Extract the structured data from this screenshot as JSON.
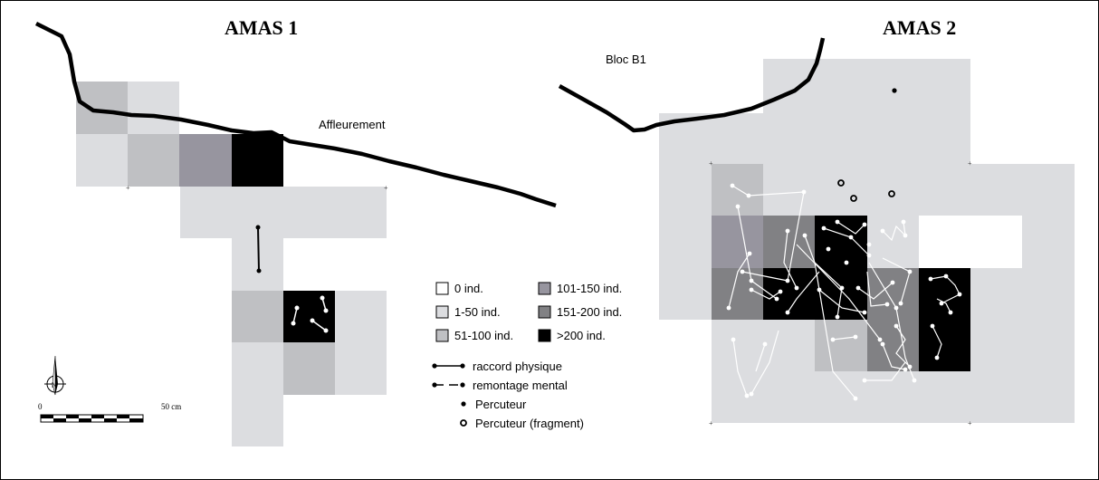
{
  "titles": {
    "amas1": "AMAS 1",
    "amas2": "AMAS 2"
  },
  "labels": {
    "affleurement": "Affleurement",
    "bloc": "Bloc B1"
  },
  "scale": {
    "start": "0",
    "end": "50 cm"
  },
  "legend": {
    "density": [
      {
        "label": "0 ind.",
        "color": "#ffffff"
      },
      {
        "label": "1-50 ind.",
        "color": "#dcdde0"
      },
      {
        "label": "51-100 ind.",
        "color": "#bfc0c3"
      },
      {
        "label": "101-150 ind.",
        "color": "#97959f"
      },
      {
        "label": "151-200  ind.",
        "color": "#818184"
      },
      {
        "label": ">200 ind.",
        "color": "#000000"
      }
    ],
    "raccord": "raccord physique",
    "remontage": "remontage mental",
    "percuteur": "Percuteur",
    "percuteur_fragment": "Percuteur (fragment)"
  },
  "colors": {
    "light": "#dcdde0",
    "mid": "#bfc0c3",
    "purple": "#97959f",
    "dark": "#818184",
    "black": "#000000"
  }
}
